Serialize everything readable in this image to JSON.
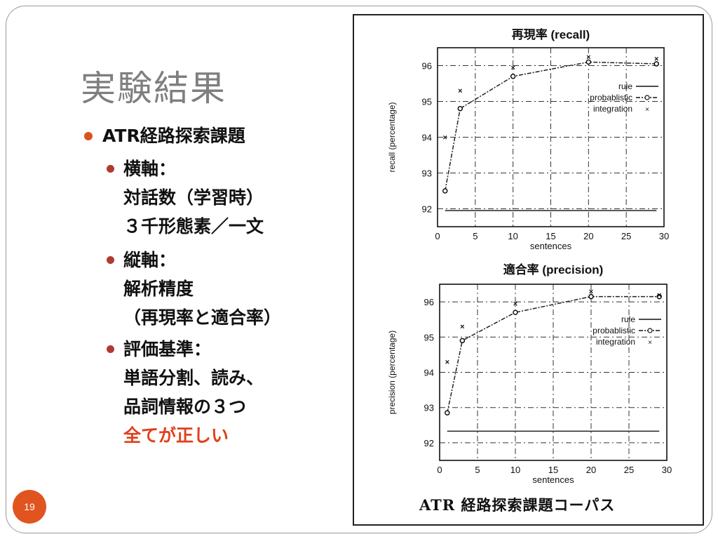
{
  "slide": {
    "title": "実験結果",
    "page_number": "19",
    "bullets": {
      "main": "ATR経路探索課題",
      "x_axis_label": "横軸：",
      "x_axis_line1": "対話数（学習時）",
      "x_axis_line2": "３千形態素／一文",
      "y_axis_label": "縦軸：",
      "y_axis_line1": "解析精度",
      "y_axis_line2": "（再現率と適合率）",
      "criteria_label": "評価基準：",
      "criteria_line1": "単語分割、読み、",
      "criteria_line2": "品詞情報の３つ",
      "criteria_line3": "全てが正しい"
    },
    "figure_caption": "ATR 経路探索課題コーパス",
    "colors": {
      "accent": "#E0541F",
      "bullet_level2": "#B03A2E",
      "emphasis": "#E0401A",
      "title": "#7f7f7f"
    }
  },
  "chart_data": [
    {
      "type": "line",
      "title": "再現率 (recall)",
      "xlabel": "sentences",
      "ylabel": "recall (percentage)",
      "xlim": [
        0,
        30
      ],
      "ylim": [
        91.5,
        96.5
      ],
      "xticks": [
        "0",
        "5",
        "10",
        "15",
        "20",
        "25",
        "30"
      ],
      "yticks": [
        "92",
        "93",
        "94",
        "95",
        "96"
      ],
      "grid": true,
      "legend_position": "right",
      "series": [
        {
          "name": "rule",
          "x": [
            1,
            29
          ],
          "y": [
            91.95,
            91.95
          ]
        },
        {
          "name": "probablistic",
          "x": [
            1,
            3,
            10,
            20,
            29
          ],
          "y": [
            92.5,
            94.8,
            95.7,
            96.1,
            96.05
          ]
        },
        {
          "name": "integration",
          "x": [
            1,
            3,
            10,
            20,
            29
          ],
          "y": [
            94.0,
            95.3,
            95.95,
            96.25,
            96.2
          ]
        }
      ]
    },
    {
      "type": "line",
      "title": "適合率 (precision)",
      "xlabel": "sentences",
      "ylabel": "precision (percentage)",
      "xlim": [
        0,
        30
      ],
      "ylim": [
        91.5,
        96.5
      ],
      "xticks": [
        "0",
        "5",
        "10",
        "15",
        "20",
        "25",
        "30"
      ],
      "yticks": [
        "92",
        "93",
        "94",
        "95",
        "96"
      ],
      "grid": true,
      "legend_position": "right",
      "series": [
        {
          "name": "rule",
          "x": [
            1,
            29
          ],
          "y": [
            92.33,
            92.33
          ]
        },
        {
          "name": "probablistic",
          "x": [
            1,
            3,
            10,
            20,
            29
          ],
          "y": [
            92.85,
            94.9,
            95.7,
            96.15,
            96.15
          ]
        },
        {
          "name": "integration",
          "x": [
            1,
            3,
            10,
            20,
            29
          ],
          "y": [
            94.3,
            95.3,
            95.95,
            96.3,
            96.2
          ]
        }
      ]
    }
  ]
}
